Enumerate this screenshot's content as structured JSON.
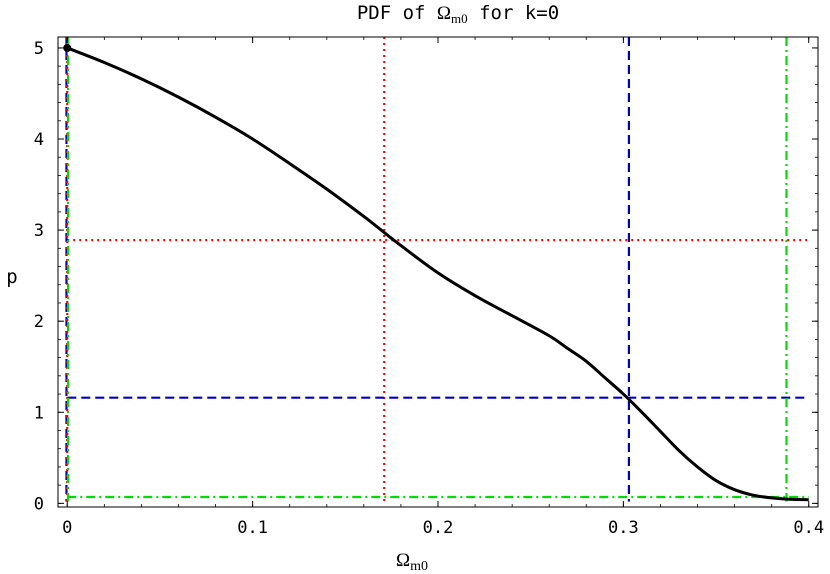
{
  "chart_data": {
    "type": "line",
    "title": {
      "prefix": "PDF of ",
      "symbol": "Ω",
      "subscript": "m0",
      "suffix": " for k=0"
    },
    "xlabel": {
      "symbol": "Ω",
      "subscript": "m0"
    },
    "ylabel": "p",
    "xlim": [
      0,
      0.4
    ],
    "ylim": [
      0,
      5.1
    ],
    "xticks": [
      {
        "value": 0,
        "label": "0"
      },
      {
        "value": 0.1,
        "label": "0.1"
      },
      {
        "value": 0.2,
        "label": "0.2"
      },
      {
        "value": 0.3,
        "label": "0.3"
      },
      {
        "value": 0.4,
        "label": "0.4"
      }
    ],
    "yticks": [
      {
        "value": 0,
        "label": "0"
      },
      {
        "value": 1,
        "label": "1"
      },
      {
        "value": 2,
        "label": "2"
      },
      {
        "value": 3,
        "label": "3"
      },
      {
        "value": 4,
        "label": "4"
      },
      {
        "value": 5,
        "label": "5"
      }
    ],
    "grid": false,
    "series": [
      {
        "color": "#000000",
        "style": "solid",
        "x": [
          0,
          0.02,
          0.04,
          0.06,
          0.08,
          0.1,
          0.12,
          0.14,
          0.16,
          0.17,
          0.18,
          0.2,
          0.22,
          0.24,
          0.26,
          0.27,
          0.28,
          0.29,
          0.3,
          0.31,
          0.32,
          0.33,
          0.34,
          0.35,
          0.36,
          0.37,
          0.38,
          0.39,
          0.4
        ],
        "y": [
          5.0,
          4.84,
          4.66,
          4.46,
          4.24,
          4.0,
          3.73,
          3.45,
          3.15,
          2.99,
          2.83,
          2.53,
          2.28,
          2.06,
          1.84,
          1.7,
          1.56,
          1.38,
          1.2,
          1.0,
          0.79,
          0.58,
          0.4,
          0.25,
          0.15,
          0.09,
          0.06,
          0.045,
          0.04
        ]
      }
    ],
    "markers": [
      {
        "x": 0,
        "y": 5.0,
        "color": "#000000"
      }
    ],
    "reference_lines": [
      {
        "color": "#ff0000",
        "style": "dotted",
        "x": 0.171,
        "y": 2.89
      },
      {
        "color": "#0000cc",
        "style": "dashed",
        "x": 0.303,
        "y": 1.16
      },
      {
        "color": "#00dd00",
        "style": "dashdot",
        "x": 0.388,
        "y": 0.07
      }
    ],
    "left_boundary_lines": [
      {
        "color": "#0000cc",
        "style": "dashed",
        "x": 0.0
      },
      {
        "color": "#ff0000",
        "style": "dotted",
        "x": 0.0
      },
      {
        "color": "#00dd00",
        "style": "dashdot",
        "x": 0.0
      }
    ]
  }
}
